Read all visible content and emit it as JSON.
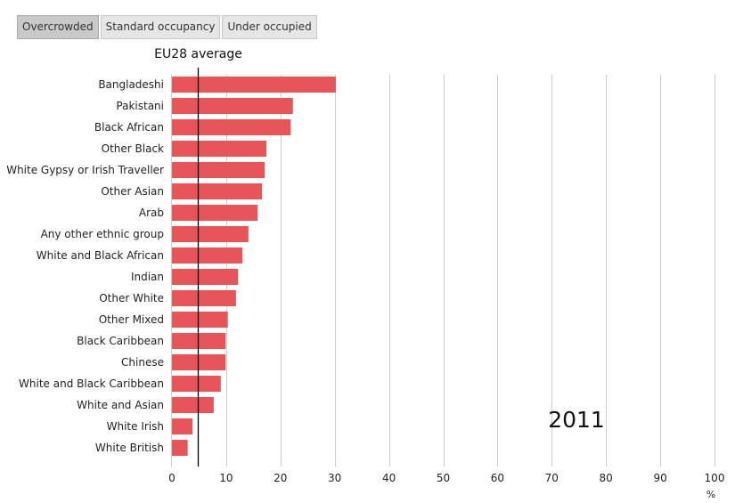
{
  "tabs": [
    {
      "label": "Overcrowded",
      "active": true
    },
    {
      "label": "Standard occupancy",
      "active": false
    },
    {
      "label": "Under occupied",
      "active": false
    }
  ],
  "colors": {
    "bar": "#e85558",
    "grid": "#cccccc",
    "reference_line": "#000000"
  },
  "chart_data": {
    "type": "bar",
    "orientation": "horizontal",
    "categories": [
      "Bangladeshi",
      "Pakistani",
      "Black African",
      "Other Black",
      "White Gypsy or Irish Traveller",
      "Other Asian",
      "Arab",
      "Any other ethnic group",
      "White and Black African",
      "Indian",
      "Other White",
      "Other Mixed",
      "Black Caribbean",
      "Chinese",
      "White and Black Caribbean",
      "White and Asian",
      "White Irish",
      "White British"
    ],
    "values": [
      30.2,
      22.3,
      21.9,
      17.4,
      17.1,
      16.6,
      15.8,
      14.1,
      13.0,
      12.2,
      11.8,
      10.3,
      9.9,
      9.9,
      9.0,
      7.7,
      3.8,
      2.9
    ],
    "xlim": [
      0,
      100
    ],
    "xticks": [
      0,
      10,
      20,
      30,
      40,
      50,
      60,
      70,
      80,
      90,
      100
    ],
    "xlabel": "%",
    "grid": true,
    "reference_line": {
      "label": "EU28 average",
      "value": 4.7
    },
    "annotation": "2011"
  }
}
